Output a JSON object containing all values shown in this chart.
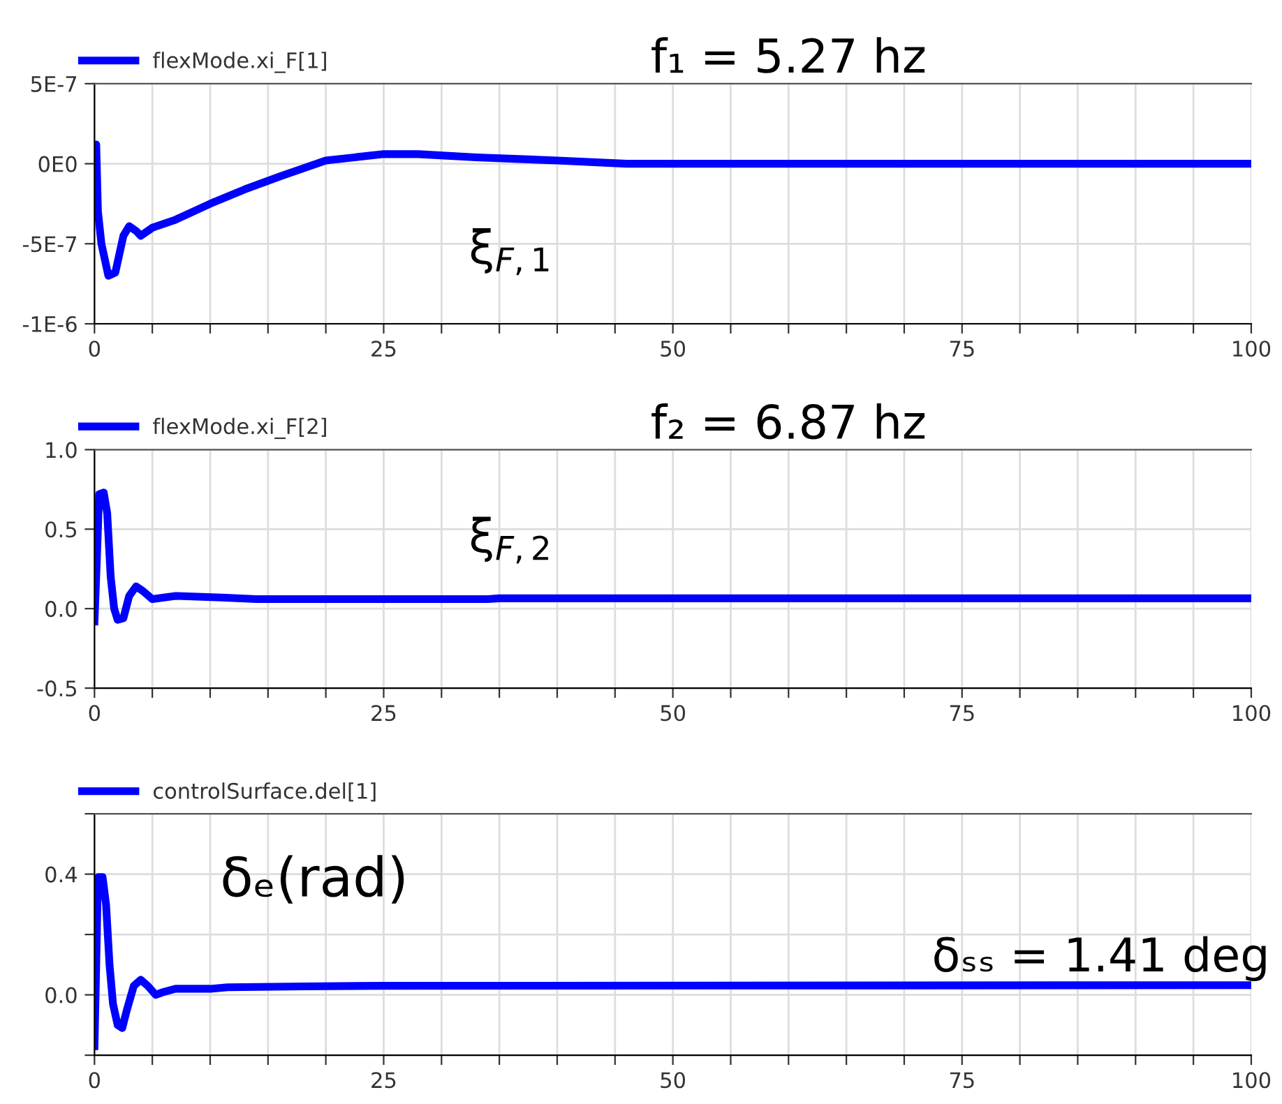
{
  "chart_data": [
    {
      "type": "line",
      "legend": "top left",
      "grid": true,
      "annotations": [
        "f₁ = 5.27 hz",
        "ξ$_{F,1}$"
      ],
      "xlim": [
        0,
        100
      ],
      "xticks": [
        0,
        {
          "value": 5,
          "label": null
        },
        {
          "value": 10,
          "label": null
        },
        {
          "value": 15,
          "label": null
        },
        {
          "value": 20,
          "label": null
        },
        25,
        {
          "value": 30,
          "label": null
        },
        {
          "value": 35,
          "label": null
        },
        {
          "value": 40,
          "label": null
        },
        {
          "value": 45,
          "label": null
        },
        50,
        {
          "value": 55,
          "label": null
        },
        {
          "value": 60,
          "label": null
        },
        {
          "value": 65,
          "label": null
        },
        {
          "value": 70,
          "label": null
        },
        75,
        {
          "value": 80,
          "label": null
        },
        {
          "value": 85,
          "label": null
        },
        {
          "value": 90,
          "label": null
        },
        {
          "value": 95,
          "label": null
        },
        100
      ],
      "ylim": [
        -1e-06,
        5e-07
      ],
      "yticks": [
        {
          "value": -1e-06,
          "label": "-1E-6"
        },
        {
          "value": -5e-07,
          "label": "-5E-7"
        },
        {
          "value": 0,
          "label": "0E0"
        },
        {
          "value": 5e-07,
          "label": "5E-7"
        }
      ],
      "series": [
        {
          "name": "flexMode.xi_F[1]",
          "color": "#0000ff",
          "x": [
            0,
            0.15,
            0.3,
            0.6,
            1.2,
            1.8,
            2.5,
            3,
            3.6,
            4,
            5,
            7,
            10,
            13,
            16,
            20,
            25,
            28,
            33,
            40,
            46,
            100
          ],
          "values": [
            -5e-08,
            1.2e-07,
            -3e-07,
            -5e-07,
            -7e-07,
            -6.8e-07,
            -4.5e-07,
            -3.9e-07,
            -4.2e-07,
            -4.5e-07,
            -4e-07,
            -3.5e-07,
            -2.5e-07,
            -1.6e-07,
            -8e-08,
            2e-08,
            6e-08,
            6e-08,
            4e-08,
            2e-08,
            0,
            0
          ]
        }
      ]
    },
    {
      "type": "line",
      "legend": "top left",
      "grid": true,
      "annotations": [
        "f₂ = 6.87 hz",
        "ξ$_{F,2}$"
      ],
      "xlim": [
        0,
        100
      ],
      "xticks": [
        0,
        {
          "value": 5,
          "label": null
        },
        {
          "value": 10,
          "label": null
        },
        {
          "value": 15,
          "label": null
        },
        {
          "value": 20,
          "label": null
        },
        25,
        {
          "value": 30,
          "label": null
        },
        {
          "value": 35,
          "label": null
        },
        {
          "value": 40,
          "label": null
        },
        {
          "value": 45,
          "label": null
        },
        50,
        {
          "value": 55,
          "label": null
        },
        {
          "value": 60,
          "label": null
        },
        {
          "value": 65,
          "label": null
        },
        {
          "value": 70,
          "label": null
        },
        75,
        {
          "value": 80,
          "label": null
        },
        {
          "value": 85,
          "label": null
        },
        {
          "value": 90,
          "label": null
        },
        {
          "value": 95,
          "label": null
        },
        100
      ],
      "ylim": [
        -0.5,
        1.0
      ],
      "yticks": [
        {
          "value": -0.5,
          "label": "-0.5"
        },
        {
          "value": 0,
          "label": "0.0"
        },
        {
          "value": 0.5,
          "label": "0.5"
        },
        {
          "value": 1.0,
          "label": "1.0"
        }
      ],
      "series": [
        {
          "name": "flexMode.xi_F[2]",
          "color": "#0000ff",
          "x": [
            0,
            0.2,
            0.4,
            0.8,
            1.1,
            1.4,
            1.7,
            2.0,
            2.5,
            3.0,
            3.6,
            4.2,
            5,
            6,
            7,
            11,
            14,
            25,
            34,
            35,
            100
          ],
          "values": [
            -0.08,
            0.3,
            0.72,
            0.73,
            0.6,
            0.2,
            0.0,
            -0.07,
            -0.06,
            0.08,
            0.14,
            0.11,
            0.06,
            0.07,
            0.08,
            0.07,
            0.06,
            0.06,
            0.06,
            0.065,
            0.065
          ]
        }
      ]
    },
    {
      "type": "line",
      "legend": "top left",
      "grid": true,
      "annotations": [
        "δₑ(rad)",
        "δₛₛ = 1.41 deg"
      ],
      "xlim": [
        0,
        100
      ],
      "xticks": [
        0,
        {
          "value": 5,
          "label": null
        },
        {
          "value": 10,
          "label": null
        },
        {
          "value": 15,
          "label": null
        },
        {
          "value": 20,
          "label": null
        },
        25,
        {
          "value": 30,
          "label": null
        },
        {
          "value": 35,
          "label": null
        },
        {
          "value": 40,
          "label": null
        },
        {
          "value": 45,
          "label": null
        },
        50,
        {
          "value": 55,
          "label": null
        },
        {
          "value": 60,
          "label": null
        },
        {
          "value": 65,
          "label": null
        },
        {
          "value": 70,
          "label": null
        },
        75,
        {
          "value": 80,
          "label": null
        },
        {
          "value": 85,
          "label": null
        },
        {
          "value": 90,
          "label": null
        },
        {
          "value": 95,
          "label": null
        },
        100
      ],
      "ylim": [
        -0.2,
        0.6
      ],
      "yticks": [
        {
          "value": -0.2,
          "label": null
        },
        {
          "value": 0,
          "label": "0.0"
        },
        {
          "value": 0.2,
          "label": null
        },
        {
          "value": 0.4,
          "label": "0.4"
        },
        {
          "value": 0.6,
          "label": null
        }
      ],
      "series": [
        {
          "name": "controlSurface.del[1]",
          "color": "#0000ff",
          "x": [
            0,
            0.15,
            0.3,
            0.7,
            1.0,
            1.3,
            1.6,
            2.0,
            2.4,
            2.8,
            3.4,
            4.0,
            4.6,
            5.3,
            6,
            7,
            10,
            11.5,
            18,
            25,
            100
          ],
          "values": [
            -0.17,
            0.1,
            0.39,
            0.39,
            0.3,
            0.1,
            -0.03,
            -0.1,
            -0.11,
            -0.05,
            0.03,
            0.05,
            0.03,
            0.0,
            0.01,
            0.02,
            0.02,
            0.025,
            0.028,
            0.03,
            0.032
          ]
        }
      ]
    }
  ]
}
